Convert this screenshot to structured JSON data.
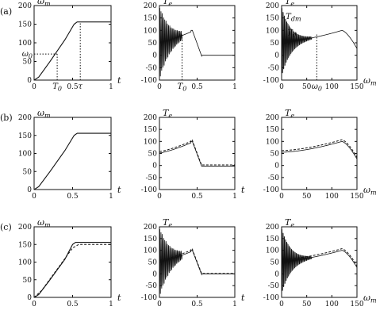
{
  "row_labels": [
    "(a)",
    "(b)",
    "(c)"
  ],
  "chart_data": [
    {
      "row": "(a)",
      "type": "line",
      "xlabel": "t",
      "ylabel": "ωm",
      "xlim": [
        0,
        1
      ],
      "ylim": [
        0,
        200
      ],
      "xticks": [
        "0",
        "0.5",
        "1"
      ],
      "yticks": [
        "0",
        "50",
        "100",
        "150",
        "200"
      ],
      "series": [
        {
          "kind": "ramp",
          "solid": [
            [
              0,
              0
            ],
            [
              0.06,
              8
            ],
            [
              0.2,
              48
            ],
            [
              0.4,
              108
            ],
            [
              0.52,
              150
            ],
            [
              0.56,
              156
            ],
            [
              1,
              156
            ]
          ]
        }
      ],
      "annotations": [
        {
          "text": "ω0",
          "x": 0,
          "y": 70,
          "anchor": "left"
        },
        {
          "text": "T0",
          "x": 0.3,
          "y": 0,
          "anchor": "below"
        },
        {
          "text": "τ",
          "x": 0.6,
          "y": 0,
          "anchor": "below"
        }
      ],
      "guides": [
        {
          "type": "h",
          "y": 70,
          "x0": 0,
          "x1": 0.3
        },
        {
          "type": "v",
          "x": 0.3,
          "y0": 0,
          "y1": 70
        },
        {
          "type": "v",
          "x": 0.6,
          "y0": 0,
          "y1": 156
        }
      ]
    },
    {
      "row": "(a)",
      "type": "line",
      "xlabel": "",
      "ylabel": "Te",
      "xlim": [
        0,
        1
      ],
      "ylim": [
        -100,
        200
      ],
      "xticks": [
        "0",
        "0.5",
        "1"
      ],
      "yticks": [
        "-100",
        "-50",
        "0",
        "50",
        "100",
        "150",
        "200"
      ],
      "series": [
        {
          "kind": "torque_time",
          "osc": true
        }
      ],
      "annotations": [
        {
          "text": "T0",
          "x": 0.3,
          "y": -100,
          "anchor": "below"
        }
      ],
      "guides": [
        {
          "type": "v",
          "x": 0.3,
          "y0": -100,
          "y1": 85
        }
      ]
    },
    {
      "row": "(a)",
      "type": "line",
      "xlabel": "ωm",
      "ylabel": "Te",
      "xlim": [
        0,
        150
      ],
      "ylim": [
        -100,
        200
      ],
      "xticks": [
        "0",
        "50",
        "100",
        "150"
      ],
      "yticks": [
        "-100",
        "-50",
        "0",
        "50",
        "100",
        "150",
        "200"
      ],
      "series": [
        {
          "kind": "torque_speed",
          "osc": true
        }
      ],
      "annotations": [
        {
          "text": "Tdm",
          "x": 5,
          "y": 155,
          "anchor": "left"
        },
        {
          "text": "Td",
          "x": 8,
          "y": 90,
          "anchor": "left"
        },
        {
          "text": "ω0",
          "x": 70,
          "y": -100,
          "anchor": "below"
        }
      ],
      "guides": [
        {
          "type": "v",
          "x": 70,
          "y0": -100,
          "y1": 85
        }
      ]
    },
    {
      "row": "(b)",
      "type": "line",
      "xlabel": "t",
      "ylabel": "ωm",
      "xlim": [
        0,
        1
      ],
      "ylim": [
        0,
        200
      ],
      "xticks": [
        "0",
        "0.5",
        "1"
      ],
      "yticks": [
        "0",
        "50",
        "100",
        "150",
        "200"
      ],
      "series": [
        {
          "kind": "ramp",
          "solid": [
            [
              0,
              0
            ],
            [
              0.06,
              8
            ],
            [
              0.2,
              48
            ],
            [
              0.4,
              108
            ],
            [
              0.52,
              150
            ],
            [
              0.56,
              156
            ],
            [
              1,
              156
            ]
          ]
        }
      ],
      "annotations": [],
      "guides": []
    },
    {
      "row": "(b)",
      "type": "line",
      "xlabel": "t",
      "ylabel": "Te",
      "xlim": [
        0,
        1
      ],
      "ylim": [
        -100,
        200
      ],
      "xticks": [
        "0",
        "0.5",
        "1"
      ],
      "yticks": [
        "-100",
        "-50",
        "0",
        "50",
        "100",
        "150",
        "200"
      ],
      "series": [
        {
          "kind": "torque_time",
          "osc": false,
          "dashed": true
        }
      ],
      "annotations": [],
      "guides": []
    },
    {
      "row": "(b)",
      "type": "line",
      "xlabel": "ωm",
      "ylabel": "Te",
      "xlim": [
        0,
        150
      ],
      "ylim": [
        -100,
        200
      ],
      "xticks": [
        "0",
        "50",
        "100",
        "150"
      ],
      "yticks": [
        "-100",
        "-50",
        "0",
        "50",
        "100",
        "150",
        "200"
      ],
      "series": [
        {
          "kind": "torque_speed",
          "osc": false,
          "dashed": true
        }
      ],
      "annotations": [],
      "guides": []
    },
    {
      "row": "(c)",
      "type": "line",
      "xlabel": "t",
      "ylabel": "ωm",
      "xlim": [
        0,
        1
      ],
      "ylim": [
        0,
        200
      ],
      "xticks": [
        "0",
        "0.5",
        "1"
      ],
      "yticks": [
        "0",
        "50",
        "100",
        "150",
        "200"
      ],
      "series": [
        {
          "kind": "ramp",
          "solid": [
            [
              0,
              0
            ],
            [
              0.06,
              8
            ],
            [
              0.2,
              48
            ],
            [
              0.4,
              108
            ],
            [
              0.5,
              150
            ],
            [
              0.54,
              156
            ],
            [
              1,
              156
            ]
          ],
          "dashed": [
            [
              0,
              0
            ],
            [
              0.1,
              20
            ],
            [
              0.3,
              80
            ],
            [
              0.5,
              140
            ],
            [
              0.58,
              150
            ],
            [
              1,
              150
            ]
          ]
        }
      ],
      "annotations": [],
      "guides": []
    },
    {
      "row": "(c)",
      "type": "line",
      "xlabel": "t",
      "ylabel": "Te",
      "xlim": [
        0,
        1
      ],
      "ylim": [
        -100,
        200
      ],
      "xticks": [
        "0",
        "0.5",
        "1"
      ],
      "yticks": [
        "-100",
        "-50",
        "0",
        "50",
        "100",
        "150",
        "200"
      ],
      "series": [
        {
          "kind": "torque_time",
          "osc": true,
          "dashed": true
        }
      ],
      "annotations": [],
      "guides": []
    },
    {
      "row": "(c)",
      "type": "line",
      "xlabel": "ωm",
      "ylabel": "Te",
      "xlim": [
        0,
        150
      ],
      "ylim": [
        -100,
        200
      ],
      "xticks": [
        "0",
        "50",
        "100",
        "150"
      ],
      "yticks": [
        "-100",
        "-50",
        "0",
        "50",
        "100",
        "150",
        "200"
      ],
      "series": [
        {
          "kind": "torque_speed",
          "osc": true,
          "dashed": true
        }
      ],
      "annotations": [],
      "guides": []
    }
  ]
}
